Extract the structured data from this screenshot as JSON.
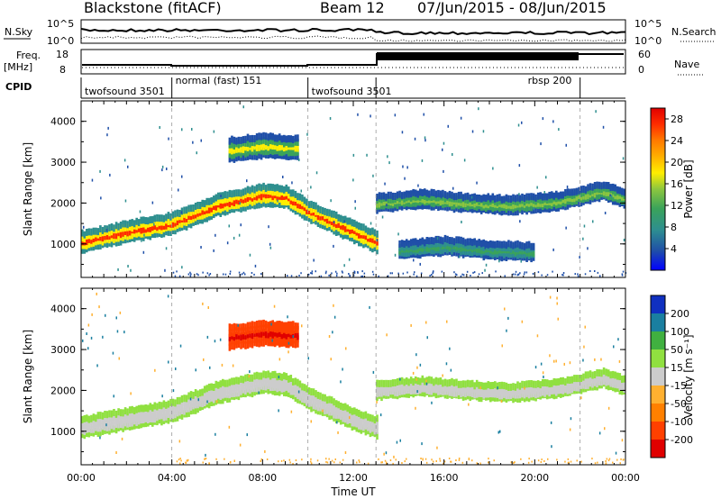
{
  "header": {
    "station": "Blackstone (fitACF)",
    "beam": "Beam 12",
    "date_range": "07/Jun/2015 - 08/Jun/2015"
  },
  "strips": {
    "sky_label": "N.Sky",
    "sky_ticks": [
      "10^5",
      "10^0"
    ],
    "search_label": "N.Search",
    "freq_label_1": "Freq.",
    "freq_label_2": "[MHz]",
    "freq_ticks": [
      "18",
      "8"
    ],
    "nave_ticks": [
      "60",
      "0"
    ],
    "nave_label": "Nave",
    "cpid_label": "CPID"
  },
  "cpid_segments": [
    {
      "label": "twofsound 3501",
      "start_h": 0.0,
      "end_h": 4.0
    },
    {
      "label": "normal (fast) 151",
      "start_h": 4.0,
      "end_h": 10.0
    },
    {
      "label": "twofsound 3501",
      "start_h": 10.0,
      "end_h": 13.0
    },
    {
      "label": "rbsp 200",
      "start_h": 13.0,
      "end_h": 22.0
    }
  ],
  "chart_data": [
    {
      "type": "heatmap",
      "title": "",
      "xlabel": "",
      "ylabel": "Slant Range [km]",
      "xlim": [
        0,
        24
      ],
      "ylim": [
        180,
        4500
      ],
      "yticks": [
        "4000",
        "3000",
        "2000",
        "1000"
      ],
      "colorbar": {
        "label": "Power [dB]",
        "ticks": [
          "28",
          "24",
          "20",
          "16",
          "12",
          "8",
          "4"
        ],
        "range": [
          0,
          30
        ],
        "colors": [
          "#0000ff",
          "#1f4fa8",
          "#2e8f8f",
          "#3aa35a",
          "#8cc63f",
          "#ffee00",
          "#ffb000",
          "#ff7a00",
          "#ff2d00",
          "#e00000"
        ]
      },
      "echo_bands": [
        {
          "desc": "main",
          "points": [
            [
              0,
              1050
            ],
            [
              2,
              1300
            ],
            [
              4,
              1500
            ],
            [
              6,
              1950
            ],
            [
              8,
              2200
            ],
            [
              9,
              2150
            ],
            [
              10,
              1800
            ],
            [
              11,
              1550
            ],
            [
              12,
              1300
            ],
            [
              13,
              1050
            ]
          ],
          "power_db": 28
        },
        {
          "desc": "upper",
          "points": [
            [
              6.5,
              3300
            ],
            [
              8,
              3400
            ],
            [
              9.5,
              3350
            ]
          ],
          "power_db": 16
        },
        {
          "desc": "afternoon",
          "points": [
            [
              13,
              2000
            ],
            [
              15,
              2100
            ],
            [
              17,
              2000
            ],
            [
              19,
              1950
            ],
            [
              21,
              2050
            ],
            [
              23,
              2300
            ],
            [
              24,
              2100
            ]
          ],
          "power_db": 14
        },
        {
          "desc": "low",
          "points": [
            [
              14,
              850
            ],
            [
              16,
              950
            ],
            [
              18,
              850
            ],
            [
              20,
              800
            ]
          ],
          "power_db": 10
        }
      ]
    },
    {
      "type": "heatmap",
      "title": "",
      "xlabel": "Time UT",
      "ylabel": "Slant Range [km]",
      "xlim": [
        0,
        24
      ],
      "ylim": [
        180,
        4500
      ],
      "yticks": [
        "4000",
        "3000",
        "2000",
        "1000"
      ],
      "xticks": [
        "00:00",
        "04:00",
        "08:00",
        "12:00",
        "16:00",
        "20:00",
        "00:00"
      ],
      "colorbar": {
        "label": "Velocity [m s⁻¹]",
        "ticks": [
          "200",
          "100",
          "50",
          "15",
          "-15",
          "-50",
          "-100",
          "-200"
        ],
        "colors": [
          "#e00000",
          "#ff4000",
          "#ff8000",
          "#ffb030",
          "#cccccc",
          "#90e040",
          "#40b040",
          "#1a7fa0",
          "#1030c0"
        ]
      },
      "echo_bands": [
        {
          "desc": "main",
          "points": [
            [
              0,
              1100
            ],
            [
              2,
              1300
            ],
            [
              4,
              1500
            ],
            [
              6,
              1950
            ],
            [
              8,
              2200
            ],
            [
              9,
              2150
            ],
            [
              10,
              1800
            ],
            [
              11,
              1550
            ],
            [
              12,
              1300
            ],
            [
              13,
              1100
            ]
          ],
          "velocity": 0
        },
        {
          "desc": "upper",
          "points": [
            [
              6.5,
              3300
            ],
            [
              8,
              3400
            ],
            [
              9.5,
              3350
            ]
          ],
          "velocity": -200
        },
        {
          "desc": "afternoon",
          "points": [
            [
              13,
              2000
            ],
            [
              15,
              2100
            ],
            [
              17,
              2000
            ],
            [
              19,
              1950
            ],
            [
              21,
              2050
            ],
            [
              23,
              2300
            ],
            [
              24,
              2100
            ]
          ],
          "velocity": 0
        }
      ]
    }
  ]
}
